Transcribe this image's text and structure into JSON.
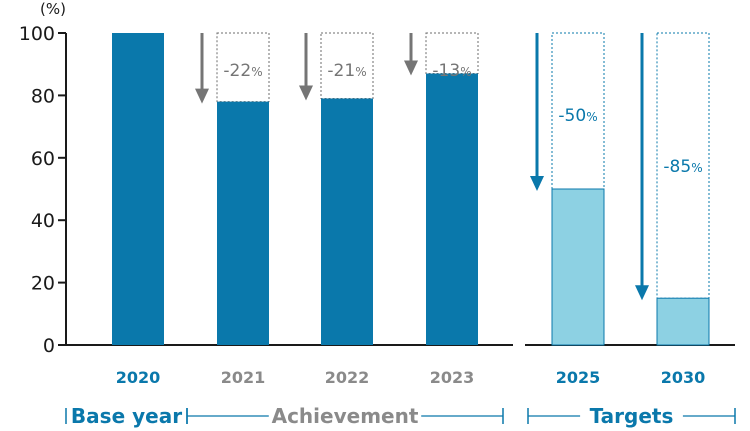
{
  "colors": {
    "base": "#0a78ab",
    "achievement": "#0a78ab",
    "target": "#8dd1e3",
    "achievement_text": "#8a8a8a",
    "blue_text": "#0a78ab",
    "gray_arrow": "#757575",
    "axis": "#1a1a1a"
  },
  "chart_data": {
    "type": "bar",
    "unit_label": "(%)",
    "ylim": [
      0,
      100
    ],
    "yticks": [
      0,
      20,
      40,
      60,
      80,
      100
    ],
    "categories": [
      "2020",
      "2021",
      "2022",
      "2023",
      "2025",
      "2030"
    ],
    "values": [
      100,
      78,
      79,
      87,
      50,
      15
    ],
    "reduction_labels": [
      "",
      "-22",
      "-21",
      "-13",
      "-50",
      "-85"
    ],
    "percent_symbol": "%",
    "groups": [
      {
        "label": "Base year",
        "categories": [
          "2020"
        ]
      },
      {
        "label": "Achievement",
        "categories": [
          "2021",
          "2022",
          "2023"
        ]
      },
      {
        "label": "Targets",
        "categories": [
          "2025",
          "2030"
        ]
      }
    ]
  }
}
